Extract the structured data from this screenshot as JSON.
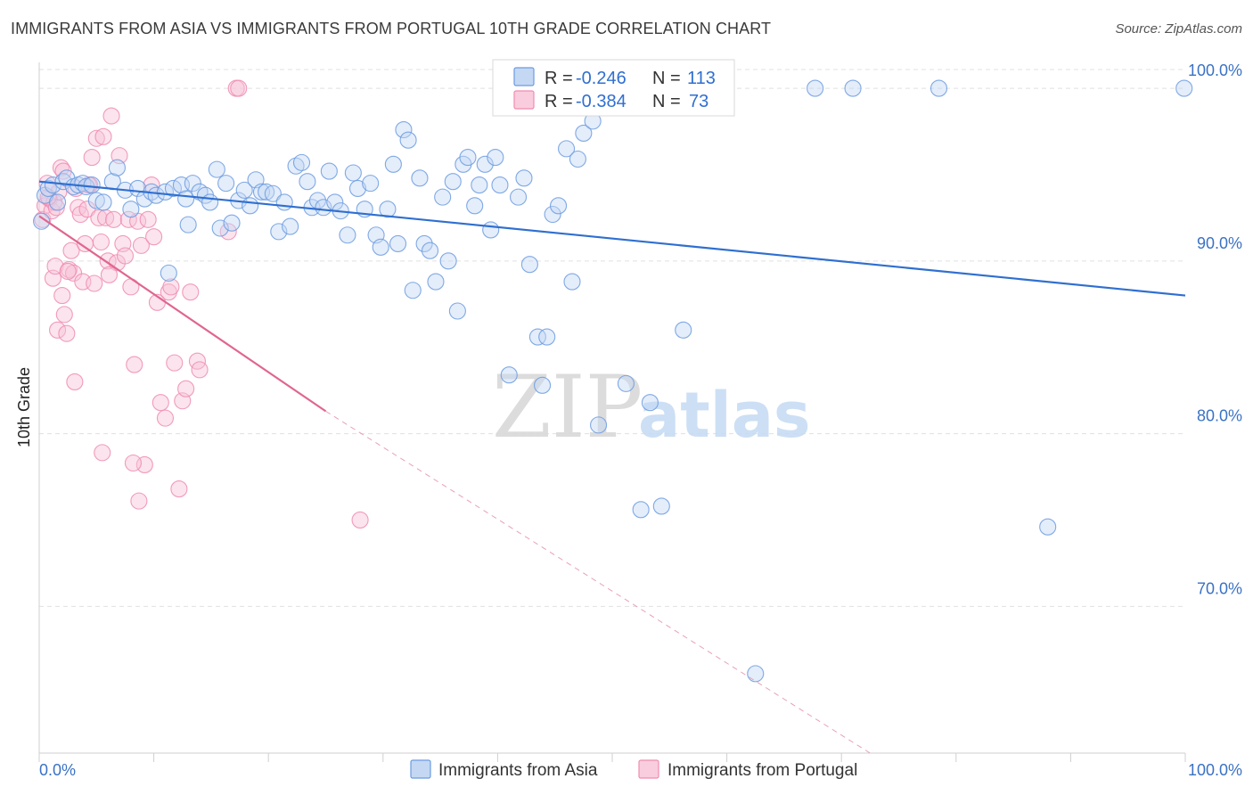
{
  "title": "IMMIGRANTS FROM ASIA VS IMMIGRANTS FROM PORTUGAL 10TH GRADE CORRELATION CHART",
  "source": "Source: ZipAtlas.com",
  "watermark": {
    "zip": "ZIP",
    "atlas": "atlas"
  },
  "legend_top": {
    "rows": [
      {
        "r_label": "R =",
        "r_value": "-0.246",
        "n_label": "N =",
        "n_value": "113",
        "color": "#6b9be0"
      },
      {
        "r_label": "R =",
        "r_value": "-0.384",
        "n_label": "N =",
        "n_value": "73",
        "color": "#f08bb0"
      }
    ]
  },
  "legend_bottom": {
    "items": [
      {
        "label": "Immigrants from Asia",
        "color": "#6b9be0"
      },
      {
        "label": "Immigrants from Portugal",
        "color": "#f08bb0"
      }
    ]
  },
  "chart_data": {
    "type": "scatter",
    "title": "IMMIGRANTS FROM ASIA VS IMMIGRANTS FROM PORTUGAL 10TH GRADE CORRELATION CHART",
    "xlabel": "",
    "ylabel": "10th Grade",
    "xlim": [
      0,
      100
    ],
    "ylim": [
      61.5,
      101.5
    ],
    "x_tick_labels": [
      "0.0%",
      "100.0%"
    ],
    "y_ticks": [
      70,
      80,
      90,
      100
    ],
    "y_tick_labels": [
      "70.0%",
      "80.0%",
      "90.0%",
      "100.0%"
    ],
    "grid": true,
    "series": [
      {
        "name": "Immigrants from Asia",
        "color": "#6b9be0",
        "trend": {
          "x": [
            0,
            100
          ],
          "y": [
            94.6,
            88.0
          ]
        },
        "points": [
          [
            0.2,
            92.3
          ],
          [
            0.5,
            93.8
          ],
          [
            0.8,
            94.2
          ],
          [
            1.2,
            94.4
          ],
          [
            1.6,
            93.4
          ],
          [
            2.1,
            94.6
          ],
          [
            2.4,
            94.8
          ],
          [
            3.0,
            94.3
          ],
          [
            3.4,
            94.4
          ],
          [
            3.8,
            94.5
          ],
          [
            4.1,
            94.3
          ],
          [
            4.6,
            94.4
          ],
          [
            5.0,
            93.5
          ],
          [
            5.6,
            93.4
          ],
          [
            6.4,
            94.6
          ],
          [
            6.8,
            95.4
          ],
          [
            7.5,
            94.1
          ],
          [
            8.0,
            93.0
          ],
          [
            8.6,
            94.2
          ],
          [
            9.2,
            93.6
          ],
          [
            9.8,
            94.0
          ],
          [
            10.2,
            93.8
          ],
          [
            11.0,
            94.0
          ],
          [
            11.3,
            89.3
          ],
          [
            11.7,
            94.2
          ],
          [
            12.4,
            94.4
          ],
          [
            12.8,
            93.6
          ],
          [
            13.0,
            92.1
          ],
          [
            13.4,
            94.5
          ],
          [
            14.0,
            94.0
          ],
          [
            14.5,
            93.8
          ],
          [
            14.9,
            93.4
          ],
          [
            15.5,
            95.3
          ],
          [
            15.8,
            91.9
          ],
          [
            16.3,
            94.5
          ],
          [
            16.8,
            92.2
          ],
          [
            17.4,
            93.5
          ],
          [
            17.9,
            94.1
          ],
          [
            18.4,
            93.2
          ],
          [
            18.9,
            94.7
          ],
          [
            19.4,
            94.0
          ],
          [
            19.8,
            94.0
          ],
          [
            20.4,
            93.9
          ],
          [
            20.9,
            91.7
          ],
          [
            21.4,
            93.4
          ],
          [
            21.9,
            92.0
          ],
          [
            22.4,
            95.5
          ],
          [
            22.9,
            95.7
          ],
          [
            23.4,
            94.6
          ],
          [
            23.8,
            93.1
          ],
          [
            24.3,
            93.5
          ],
          [
            24.8,
            93.1
          ],
          [
            25.3,
            95.2
          ],
          [
            25.8,
            93.4
          ],
          [
            26.3,
            92.9
          ],
          [
            26.9,
            91.5
          ],
          [
            27.4,
            95.1
          ],
          [
            27.8,
            94.2
          ],
          [
            28.4,
            93.0
          ],
          [
            28.9,
            94.5
          ],
          [
            29.4,
            91.5
          ],
          [
            29.8,
            90.8
          ],
          [
            30.4,
            93.0
          ],
          [
            30.9,
            95.6
          ],
          [
            31.3,
            91.0
          ],
          [
            31.8,
            97.6
          ],
          [
            32.2,
            97.0
          ],
          [
            32.6,
            88.3
          ],
          [
            33.2,
            94.8
          ],
          [
            33.6,
            91.0
          ],
          [
            34.1,
            90.6
          ],
          [
            34.6,
            88.8
          ],
          [
            35.2,
            93.7
          ],
          [
            35.7,
            90.0
          ],
          [
            36.1,
            94.6
          ],
          [
            36.5,
            87.1
          ],
          [
            37.0,
            95.6
          ],
          [
            37.4,
            96.0
          ],
          [
            38.0,
            93.2
          ],
          [
            38.4,
            94.4
          ],
          [
            38.9,
            95.6
          ],
          [
            39.4,
            91.8
          ],
          [
            39.8,
            96.0
          ],
          [
            40.2,
            94.4
          ],
          [
            41.0,
            83.4
          ],
          [
            41.8,
            93.7
          ],
          [
            42.3,
            94.8
          ],
          [
            42.8,
            89.8
          ],
          [
            43.5,
            85.6
          ],
          [
            43.9,
            82.8
          ],
          [
            44.3,
            85.6
          ],
          [
            44.8,
            92.7
          ],
          [
            45.3,
            93.2
          ],
          [
            46.0,
            96.5
          ],
          [
            46.5,
            88.8
          ],
          [
            47.0,
            95.9
          ],
          [
            47.5,
            97.4
          ],
          [
            48.3,
            98.1
          ],
          [
            48.8,
            80.5
          ],
          [
            49.3,
            100.0
          ],
          [
            50.2,
            100.0
          ],
          [
            51.2,
            82.9
          ],
          [
            52.5,
            75.6
          ],
          [
            53.3,
            81.8
          ],
          [
            54.3,
            75.8
          ],
          [
            56.2,
            86.0
          ],
          [
            58.0,
            100.0
          ],
          [
            62.5,
            66.1
          ],
          [
            67.7,
            100.0
          ],
          [
            71.0,
            100.0
          ],
          [
            78.5,
            100.0
          ],
          [
            88.0,
            74.6
          ],
          [
            99.9,
            100.0
          ]
        ]
      },
      {
        "name": "Immigrants from Portugal",
        "color": "#f08bb0",
        "trend": {
          "x": [
            0,
            25
          ],
          "y": [
            92.6,
            81.3
          ]
        },
        "trend_extension": {
          "x": [
            25,
            72.5
          ],
          "y": [
            81.3,
            61.5
          ]
        },
        "points": [
          [
            0.3,
            92.4
          ],
          [
            0.5,
            93.2
          ],
          [
            0.7,
            94.5
          ],
          [
            0.9,
            93.6
          ],
          [
            1.1,
            92.9
          ],
          [
            1.3,
            93.4
          ],
          [
            1.5,
            93.1
          ],
          [
            1.7,
            94.0
          ],
          [
            1.9,
            95.4
          ],
          [
            2.1,
            95.2
          ],
          [
            1.2,
            89.0
          ],
          [
            1.4,
            89.7
          ],
          [
            1.6,
            86.0
          ],
          [
            2.0,
            88.0
          ],
          [
            2.2,
            86.9
          ],
          [
            2.4,
            85.8
          ],
          [
            2.6,
            89.5
          ],
          [
            2.8,
            90.6
          ],
          [
            3.0,
            89.3
          ],
          [
            3.2,
            94.2
          ],
          [
            3.4,
            93.1
          ],
          [
            3.6,
            92.7
          ],
          [
            3.8,
            88.8
          ],
          [
            4.0,
            91.0
          ],
          [
            4.2,
            93.0
          ],
          [
            4.4,
            94.4
          ],
          [
            4.6,
            96.0
          ],
          [
            4.8,
            88.7
          ],
          [
            5.0,
            97.1
          ],
          [
            5.2,
            92.5
          ],
          [
            5.4,
            91.1
          ],
          [
            5.6,
            97.2
          ],
          [
            5.8,
            92.5
          ],
          [
            6.0,
            90.0
          ],
          [
            6.3,
            98.4
          ],
          [
            6.5,
            92.4
          ],
          [
            6.8,
            89.9
          ],
          [
            7.0,
            96.1
          ],
          [
            7.3,
            91.0
          ],
          [
            7.5,
            90.3
          ],
          [
            7.8,
            92.4
          ],
          [
            8.0,
            88.5
          ],
          [
            8.3,
            84.0
          ],
          [
            8.6,
            92.3
          ],
          [
            8.9,
            90.9
          ],
          [
            9.2,
            78.2
          ],
          [
            9.5,
            92.4
          ],
          [
            9.8,
            94.4
          ],
          [
            10.0,
            91.4
          ],
          [
            10.3,
            87.6
          ],
          [
            10.6,
            81.8
          ],
          [
            11.0,
            80.9
          ],
          [
            11.3,
            88.2
          ],
          [
            11.5,
            88.5
          ],
          [
            11.8,
            84.1
          ],
          [
            12.2,
            76.8
          ],
          [
            12.5,
            81.9
          ],
          [
            12.8,
            82.6
          ],
          [
            13.2,
            88.2
          ],
          [
            13.8,
            84.2
          ],
          [
            14.0,
            83.7
          ],
          [
            16.5,
            91.7
          ],
          [
            17.2,
            100.0
          ],
          [
            17.4,
            100.0
          ],
          [
            3.1,
            83.0
          ],
          [
            5.5,
            78.9
          ],
          [
            8.2,
            78.3
          ],
          [
            8.7,
            76.1
          ],
          [
            2.5,
            89.4
          ],
          [
            0.8,
            93.7
          ],
          [
            28.0,
            75.0
          ],
          [
            4.3,
            94.4
          ],
          [
            6.1,
            89.2
          ]
        ]
      }
    ]
  }
}
